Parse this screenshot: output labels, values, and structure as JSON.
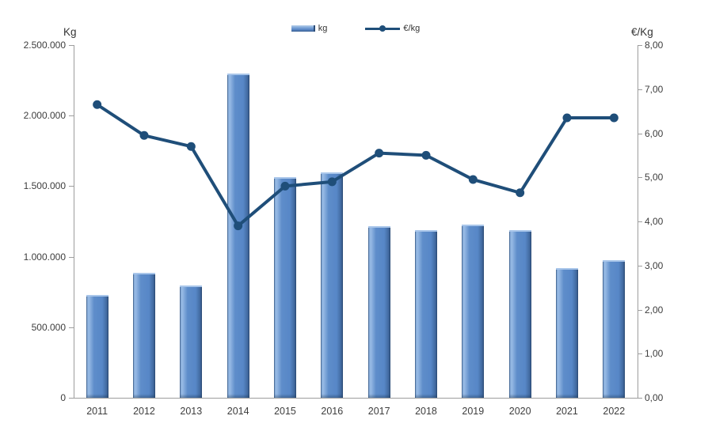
{
  "chart_data": {
    "type": "combo-bar-line",
    "title": "",
    "categories": [
      "2011",
      "2012",
      "2013",
      "2014",
      "2015",
      "2016",
      "2017",
      "2018",
      "2019",
      "2020",
      "2021",
      "2022"
    ],
    "series": [
      {
        "name": "kg",
        "type": "bar",
        "axis": "left",
        "color": "#5b8ac8",
        "values": [
          730000,
          885000,
          795000,
          2300000,
          1565000,
          1600000,
          1215000,
          1190000,
          1230000,
          1190000,
          920000,
          975000
        ]
      },
      {
        "name": "€/kg",
        "type": "line",
        "axis": "right",
        "color": "#1f4e79",
        "values": [
          6.65,
          5.95,
          5.7,
          3.9,
          4.8,
          4.9,
          5.55,
          5.5,
          4.95,
          4.65,
          6.35,
          6.35
        ]
      }
    ],
    "left_axis": {
      "label": "Kg",
      "min": 0,
      "max": 2500000,
      "step": 500000,
      "tick_labels": [
        "0",
        "500.000",
        "1.000.000",
        "1.500.000",
        "2.000.000",
        "2.500.000"
      ]
    },
    "right_axis": {
      "label": "€/Kg",
      "min": 0,
      "max": 8,
      "step": 1,
      "tick_labels": [
        "0,00",
        "1,00",
        "2,00",
        "3,00",
        "4,00",
        "5,00",
        "6,00",
        "7,00",
        "8,00"
      ]
    },
    "legend": {
      "position": "top",
      "entries": [
        {
          "label": "kg",
          "type": "bar"
        },
        {
          "label": "€/kg",
          "type": "line"
        }
      ]
    },
    "grid": false
  }
}
